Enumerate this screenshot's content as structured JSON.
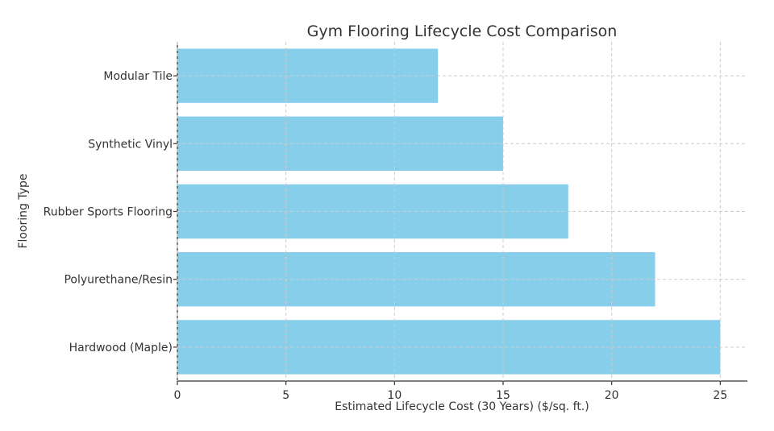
{
  "chart_data": {
    "type": "bar",
    "orientation": "horizontal",
    "title": "Gym Flooring Lifecycle Cost Comparison",
    "xlabel": "Estimated Lifecycle Cost (30 Years) ($/sq. ft.)",
    "ylabel": "Flooring Type",
    "categories": [
      "Modular Tile",
      "Synthetic Vinyl",
      "Rubber Sports Flooring",
      "Polyurethane/Resin",
      "Hardwood (Maple)"
    ],
    "values": [
      12,
      15,
      18,
      22,
      25
    ],
    "xlim": [
      0,
      26.25
    ],
    "xticks": [
      0,
      5,
      10,
      15,
      20,
      25
    ],
    "bar_color": "#87ceeb",
    "grid": true
  }
}
